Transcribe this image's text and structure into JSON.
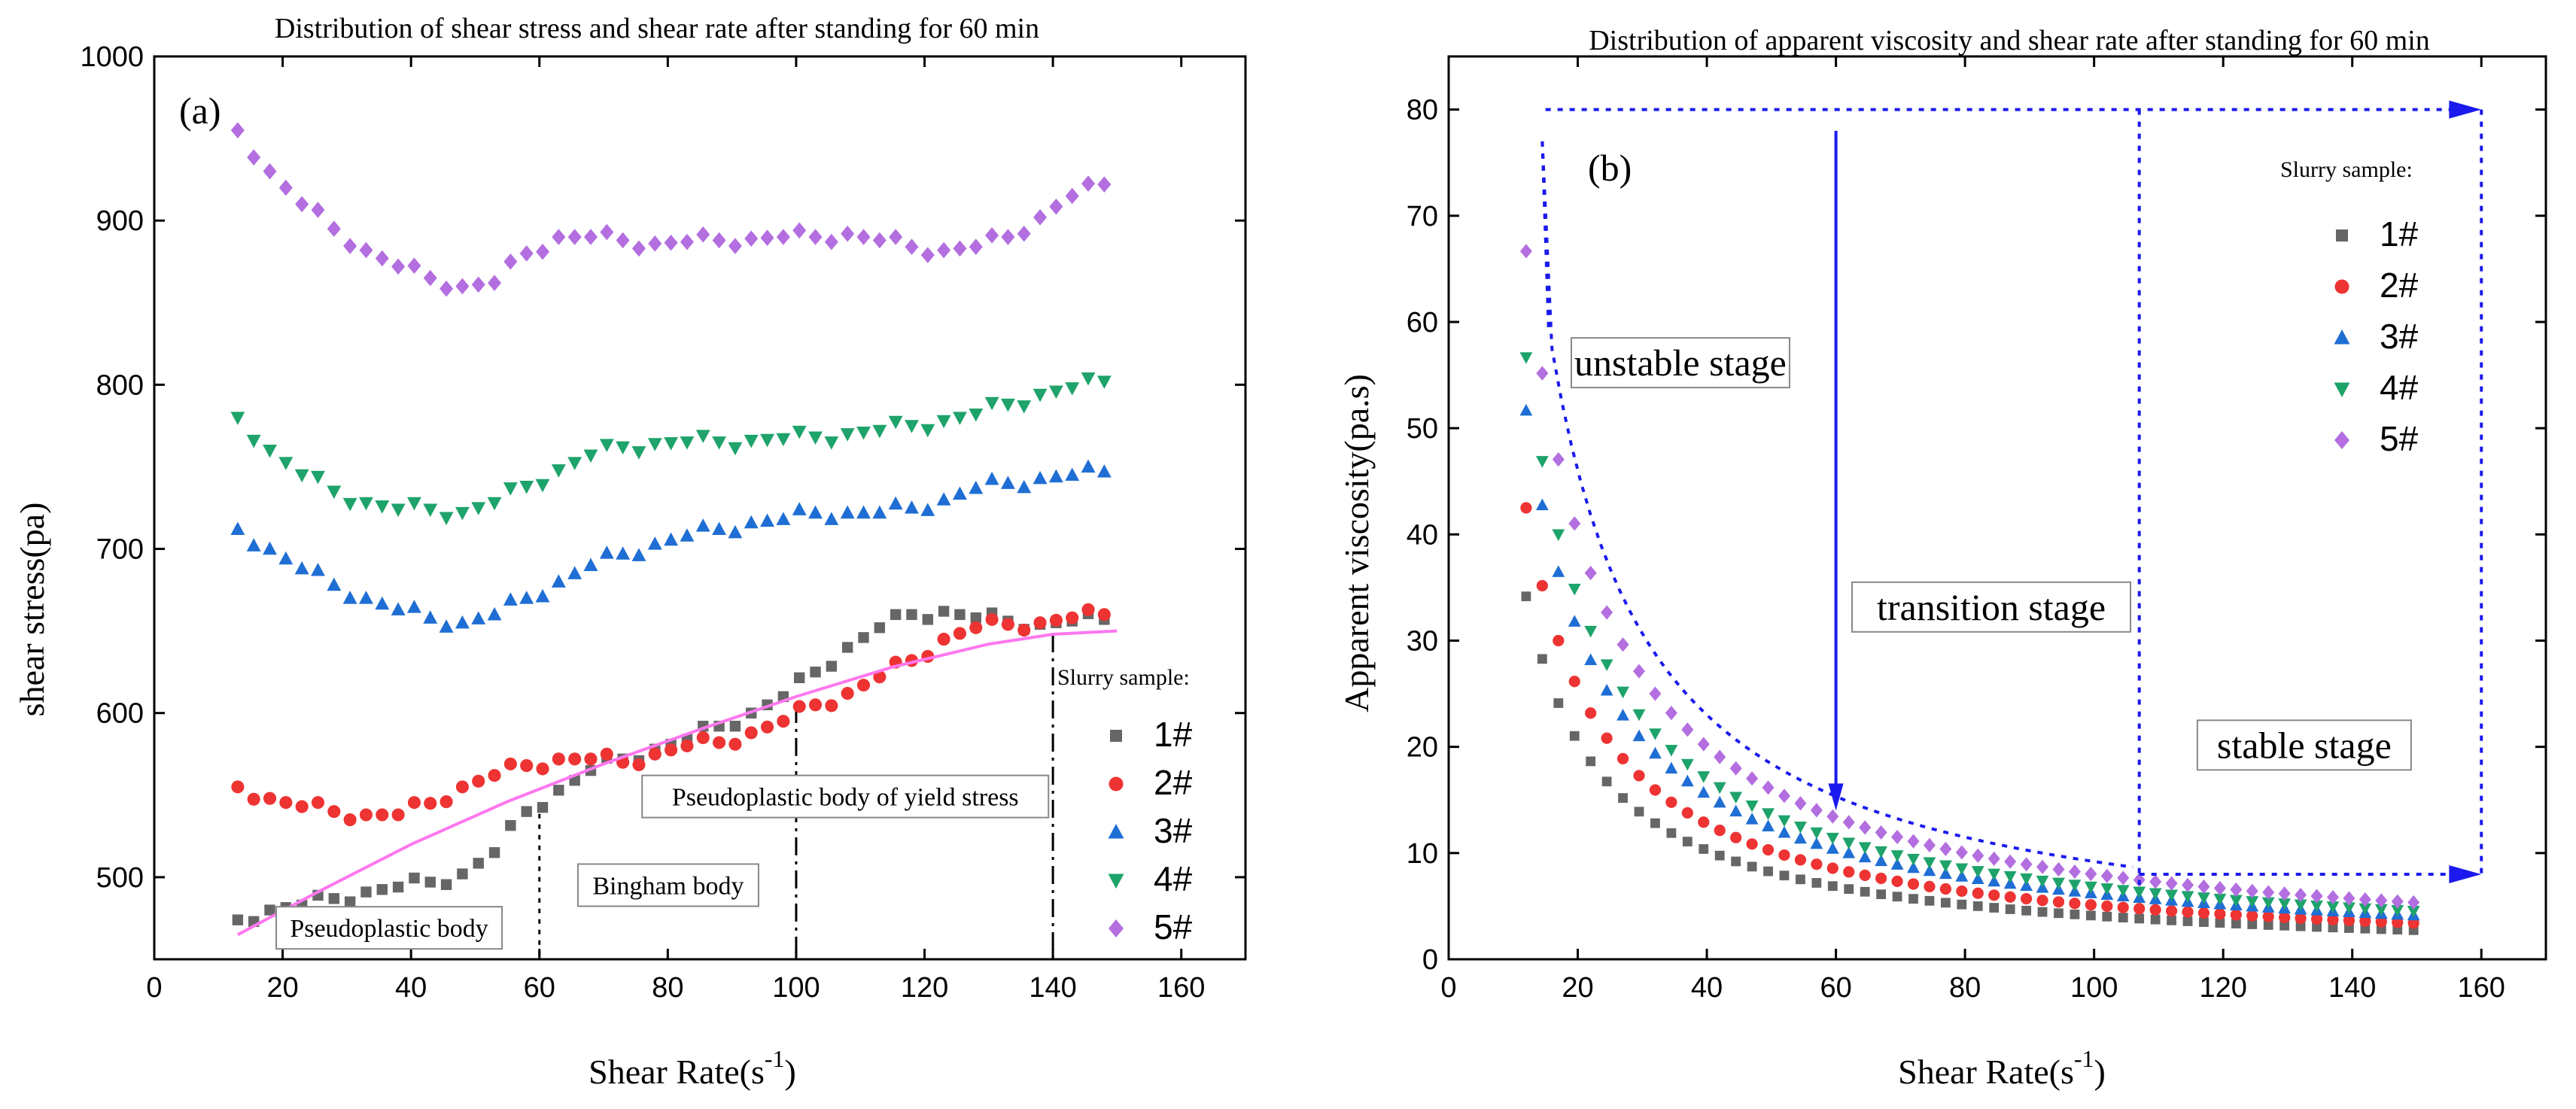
{
  "chart_data": [
    {
      "type": "scatter",
      "title": "Distribution of shear stress and shear rate after standing for 60 min",
      "panel_label": "(a)",
      "xlabel": "Shear Rate(s",
      "xlabel_sup": "-1",
      "xlabel_suffix": ")",
      "ylabel": "shear stress(pa)",
      "xlim": [
        0,
        170
      ],
      "ylim": [
        450,
        1000
      ],
      "xticks": [
        "0",
        "20",
        "40",
        "60",
        "80",
        "100",
        "120",
        "140",
        "160"
      ],
      "yticks": [
        "500",
        "600",
        "700",
        "800",
        "900",
        "1000"
      ],
      "grid": false,
      "legend_position": "bottom-right",
      "legend_title": "Slurry sample:",
      "series": [
        {
          "name": "1#",
          "color": "#666666",
          "marker": "square",
          "x": [
            13,
            18,
            23,
            28,
            33,
            38,
            43,
            48,
            53,
            58,
            63,
            68,
            73,
            78,
            83,
            88,
            93,
            98,
            103,
            108,
            113,
            118,
            123,
            128,
            133,
            138,
            143,
            148
          ],
          "y": [
            474,
            480,
            483,
            487,
            491,
            494,
            497,
            502,
            515,
            540,
            553,
            565,
            572,
            578,
            584,
            592,
            600,
            610,
            625,
            640,
            652,
            660,
            662,
            658,
            656,
            654,
            656,
            657
          ]
        },
        {
          "name": "2#",
          "color": "#ee3333",
          "marker": "circle",
          "x": [
            13,
            18,
            23,
            28,
            33,
            38,
            43,
            48,
            53,
            58,
            63,
            68,
            73,
            78,
            83,
            88,
            93,
            98,
            103,
            108,
            113,
            118,
            123,
            128,
            133,
            138,
            143,
            148
          ],
          "y": [
            555,
            548,
            543,
            540,
            538,
            538,
            545,
            555,
            562,
            568,
            572,
            572,
            570,
            575,
            580,
            582,
            588,
            595,
            605,
            612,
            622,
            632,
            645,
            652,
            654,
            655,
            658,
            660
          ]
        },
        {
          "name": "3#",
          "color": "#1f6ed4",
          "marker": "triangle-up",
          "x": [
            13,
            18,
            23,
            28,
            33,
            38,
            43,
            48,
            53,
            58,
            63,
            68,
            73,
            78,
            83,
            88,
            93,
            98,
            103,
            108,
            113,
            118,
            123,
            128,
            133,
            138,
            143,
            148
          ],
          "y": [
            712,
            700,
            688,
            678,
            670,
            663,
            658,
            655,
            660,
            670,
            680,
            690,
            697,
            703,
            708,
            712,
            716,
            718,
            722,
            722,
            722,
            725,
            730,
            737,
            740,
            743,
            745,
            747
          ]
        },
        {
          "name": "4#",
          "color": "#1ea36a",
          "marker": "triangle-down",
          "x": [
            13,
            18,
            23,
            28,
            33,
            38,
            43,
            48,
            53,
            58,
            63,
            68,
            73,
            78,
            83,
            88,
            93,
            98,
            103,
            108,
            113,
            118,
            123,
            128,
            133,
            138,
            143,
            148
          ],
          "y": [
            780,
            760,
            745,
            735,
            728,
            724,
            724,
            722,
            728,
            738,
            748,
            757,
            762,
            764,
            765,
            765,
            766,
            767,
            768,
            770,
            772,
            775,
            778,
            782,
            788,
            794,
            798,
            802
          ]
        },
        {
          "name": "5#",
          "color": "#b36ee0",
          "marker": "diamond",
          "x": [
            13,
            18,
            23,
            28,
            33,
            38,
            43,
            48,
            53,
            58,
            63,
            68,
            73,
            78,
            83,
            88,
            93,
            98,
            103,
            108,
            113,
            118,
            123,
            128,
            133,
            138,
            143,
            148
          ],
          "y": [
            955,
            930,
            910,
            895,
            882,
            872,
            865,
            860,
            862,
            880,
            890,
            890,
            888,
            886,
            887,
            888,
            889,
            890,
            890,
            892,
            888,
            884,
            882,
            884,
            890,
            902,
            915,
            922
          ]
        }
      ],
      "fit_curve": {
        "color": "#ff77ee",
        "x": [
          13,
          25,
          40,
          55,
          70,
          85,
          100,
          115,
          130,
          140,
          150
        ],
        "y": [
          465,
          490,
          520,
          546,
          569,
          590,
          610,
          628,
          642,
          648,
          650
        ]
      },
      "regions": [
        {
          "label": "Pseudoplastic body",
          "x_end": 60
        },
        {
          "label": "Bingham body",
          "x_end": 100
        },
        {
          "label": "Pseudoplastic body of yield stress",
          "x_end": 140
        }
      ]
    },
    {
      "type": "scatter",
      "title": "Distribution of apparent viscosity and shear rate after standing for 60 min",
      "panel_label": "(b)",
      "xlabel": "Shear Rate(s",
      "xlabel_sup": "-1",
      "xlabel_suffix": ")",
      "ylabel": "Apparent viscosity(pa.s)",
      "xlim": [
        0,
        170
      ],
      "ylim": [
        0,
        85
      ],
      "xticks": [
        "0",
        "20",
        "40",
        "60",
        "80",
        "100",
        "120",
        "140",
        "160"
      ],
      "yticks": [
        "0",
        "10",
        "20",
        "30",
        "40",
        "50",
        "60",
        "70",
        "80"
      ],
      "grid": false,
      "legend_position": "top-right",
      "legend_title": "Slurry sample:",
      "series": [
        {
          "name": "1#",
          "color": "#666666",
          "marker": "square",
          "k": 410,
          "floor": 0
        },
        {
          "name": "2#",
          "color": "#ee3333",
          "marker": "circle",
          "k": 510,
          "floor": 0
        },
        {
          "name": "3#",
          "color": "#1f6ed4",
          "marker": "triangle-up",
          "k": 620,
          "floor": 0
        },
        {
          "name": "4#",
          "color": "#1ea36a",
          "marker": "triangle-down",
          "k": 680,
          "floor": 0
        },
        {
          "name": "5#",
          "color": "#b36ee0",
          "marker": "diamond",
          "k": 800,
          "floor": 0
        }
      ],
      "stages": [
        {
          "label": "unstable stage"
        },
        {
          "label": "transition stage"
        },
        {
          "label": "stable stage"
        }
      ],
      "arrow_color": "#1a1aee"
    }
  ]
}
